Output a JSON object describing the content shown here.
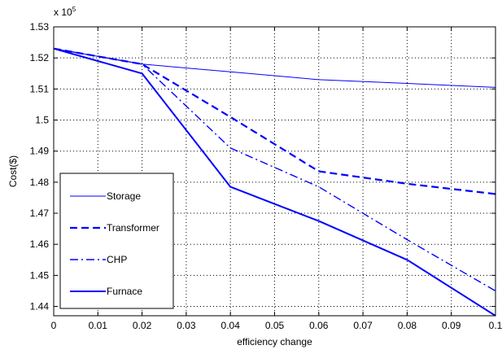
{
  "chart_data": {
    "type": "line",
    "xlabel": "efficiency change",
    "ylabel": "Cost($)",
    "y_exponent": {
      "base": "x 10",
      "exp": "5"
    },
    "xlim": [
      0,
      0.1
    ],
    "ylim": [
      1.437,
      1.53
    ],
    "x_ticks": [
      0,
      0.01,
      0.02,
      0.03,
      0.04,
      0.05,
      0.06,
      0.07,
      0.08,
      0.09,
      0.1
    ],
    "x_tick_labels": [
      "0",
      "0.01",
      "0.02",
      "0.03",
      "0.04",
      "0.05",
      "0.06",
      "0.07",
      "0.08",
      "0.09",
      "0.1"
    ],
    "y_ticks": [
      1.44,
      1.45,
      1.46,
      1.47,
      1.48,
      1.49,
      1.5,
      1.51,
      1.52,
      1.53
    ],
    "y_tick_labels": [
      "1.44",
      "1.45",
      "1.46",
      "1.47",
      "1.48",
      "1.49",
      "1.5",
      "1.51",
      "1.52",
      "1.53"
    ],
    "grid": true,
    "legend_position": "lower-left",
    "series": [
      {
        "name": "Storage",
        "style": "solid-thin",
        "color": "#0000ff",
        "x": [
          0,
          0.02,
          0.04,
          0.06,
          0.08,
          0.1
        ],
        "y": [
          1.523,
          1.518,
          1.5155,
          1.513,
          1.5118,
          1.5105
        ]
      },
      {
        "name": "Transformer",
        "style": "dashed",
        "color": "#0000ff",
        "x": [
          0,
          0.02,
          0.04,
          0.06,
          0.08,
          0.1
        ],
        "y": [
          1.523,
          1.518,
          1.501,
          1.4835,
          1.4795,
          1.4762
        ]
      },
      {
        "name": "CHP",
        "style": "dashdot",
        "color": "#0000ff",
        "x": [
          0,
          0.02,
          0.04,
          0.06,
          0.08,
          0.1
        ],
        "y": [
          1.523,
          1.518,
          1.491,
          1.4785,
          1.4615,
          1.445
        ]
      },
      {
        "name": "Furnace",
        "style": "solid-thick",
        "color": "#0000ff",
        "x": [
          0,
          0.02,
          0.04,
          0.06,
          0.08,
          0.1
        ],
        "y": [
          1.523,
          1.515,
          1.4785,
          1.4675,
          1.455,
          1.437
        ]
      }
    ]
  }
}
